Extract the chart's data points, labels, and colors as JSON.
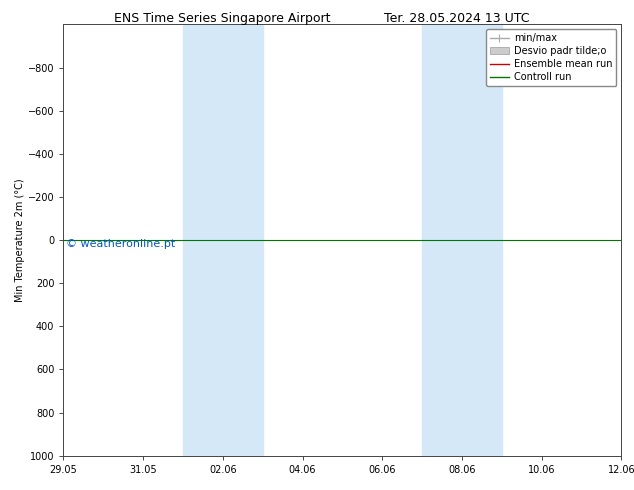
{
  "title_left": "ENS Time Series Singapore Airport",
  "title_right": "Ter. 28.05.2024 13 UTC",
  "ylabel": "Min Temperature 2m (°C)",
  "ylim_bottom": -1000,
  "ylim_top": 1000,
  "yticks": [
    -800,
    -600,
    -400,
    -200,
    0,
    200,
    400,
    600,
    800,
    1000
  ],
  "xtick_labels": [
    "29.05",
    "31.05",
    "02.06",
    "04.06",
    "06.06",
    "08.06",
    "10.06",
    "12.06"
  ],
  "xtick_positions": [
    0,
    2,
    4,
    6,
    8,
    10,
    12,
    14
  ],
  "shaded_bands": [
    {
      "x_start": 3.0,
      "x_end": 5.0
    },
    {
      "x_start": 9.0,
      "x_end": 11.0
    }
  ],
  "line_y": 0.0,
  "watermark": "© weatheronline.pt",
  "watermark_color": "#0055cc",
  "band_color": "#d4e8f8",
  "control_run_color": "#007700",
  "ensemble_mean_color": "#cc0000",
  "minmax_color": "#aaaaaa",
  "stddev_color": "#cccccc",
  "background_color": "#ffffff",
  "legend_entries": [
    "min/max",
    "Desvio padr tilde;o",
    "Ensemble mean run",
    "Controll run"
  ],
  "font_size_title": 9,
  "font_size_axis": 7,
  "font_size_legend": 7,
  "font_size_watermark": 8
}
